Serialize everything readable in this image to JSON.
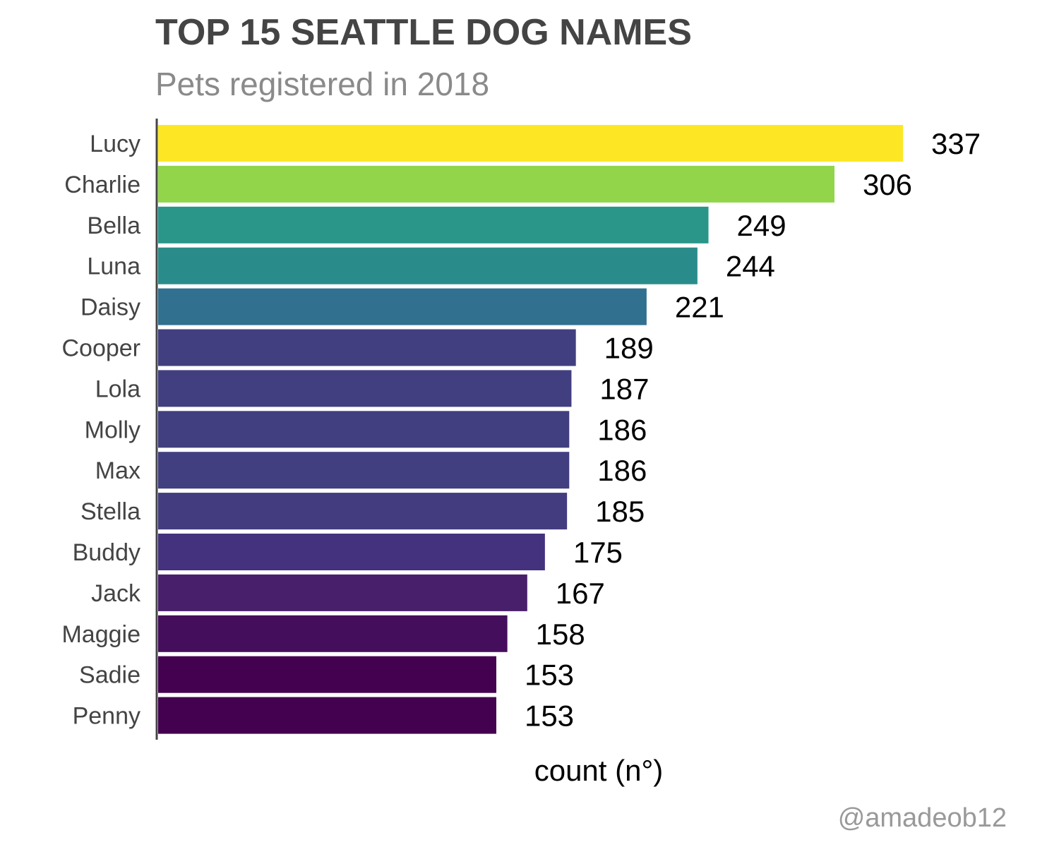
{
  "chart_data": {
    "type": "bar",
    "orientation": "horizontal",
    "title": "TOP 15 SEATTLE DOG NAMES",
    "subtitle": "Pets registered in 2018",
    "xlabel": "count (n°)",
    "ylabel": "",
    "caption": "@amadeob12",
    "categories": [
      "Lucy",
      "Charlie",
      "Bella",
      "Luna",
      "Daisy",
      "Cooper",
      "Lola",
      "Molly",
      "Max",
      "Stella",
      "Buddy",
      "Jack",
      "Maggie",
      "Sadie",
      "Penny"
    ],
    "values": [
      337,
      306,
      249,
      244,
      221,
      189,
      187,
      186,
      186,
      185,
      175,
      167,
      158,
      153,
      153
    ],
    "colors": [
      "#FDE725",
      "#92D54A",
      "#2A968A",
      "#2A8C8A",
      "#31708E",
      "#413F80",
      "#413F80",
      "#413F80",
      "#413F80",
      "#433D80",
      "#44327E",
      "#481F6B",
      "#450E5C",
      "#44014F",
      "#44014F"
    ],
    "xlim": [
      0,
      337
    ],
    "grid": false,
    "legend": "none"
  }
}
